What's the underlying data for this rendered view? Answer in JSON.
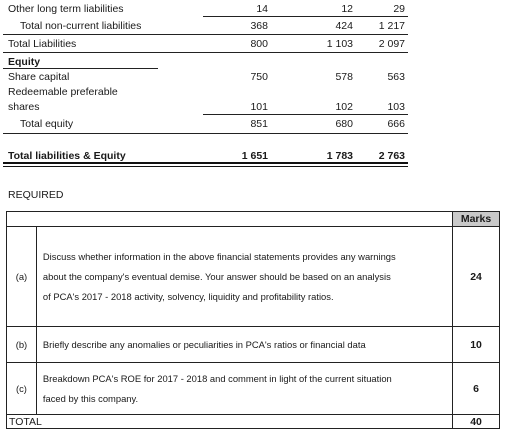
{
  "financials": {
    "rows": [
      {
        "label": "Other long term liabilities",
        "v1": "14",
        "v2": "12",
        "v3": "29"
      },
      {
        "label": "Total non-current liabilities",
        "v1": "368",
        "v2": "424",
        "v3": "1 217"
      },
      {
        "label": "Total Liabilities",
        "v1": "800",
        "v2": "1 103",
        "v3": "2 097"
      },
      {
        "label": "Equity"
      },
      {
        "label": "Share capital",
        "v1": "750",
        "v2": "578",
        "v3": "563"
      },
      {
        "label_line1": "Redeemable preferable",
        "label_line2": "shares",
        "v1": "101",
        "v2": "102",
        "v3": "103"
      },
      {
        "label": "Total equity",
        "v1": "851",
        "v2": "680",
        "v3": "666"
      },
      {
        "label": "Total liabilities & Equity",
        "v1": "1 651",
        "v2": "1 783",
        "v3": "2 763"
      }
    ]
  },
  "required": {
    "heading": "REQUIRED",
    "marks_header": "Marks",
    "items": [
      {
        "letter": "(a)",
        "line1": "Discuss whether information in the above financial statements provides any warnings",
        "line2": "about the company's eventual demise. Your answer should be based on an analysis",
        "line3": "of PCA's 2017 - 2018 activity, solvency, liquidity and profitability ratios.",
        "marks": "24"
      },
      {
        "letter": "(b)",
        "line1": "Briefly describe any anomalies or peculiarities in PCA's ratios or financial data",
        "marks": "10"
      },
      {
        "letter": "(c)",
        "line1": "Breakdown PCA's ROE for 2017 - 2018 and comment in light of the current situation",
        "line2": "faced by this company.",
        "marks": "6"
      }
    ],
    "total_label": "TOTAL",
    "total_marks": "40"
  }
}
